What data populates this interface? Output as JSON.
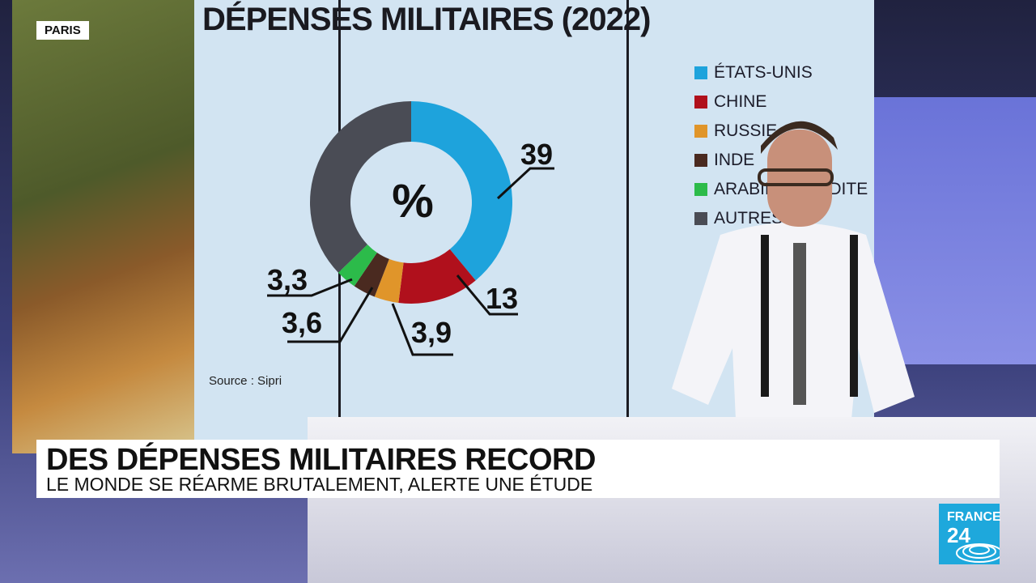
{
  "location_tag": "PARIS",
  "graphic": {
    "title": "DÉPENSES MILITAIRES (2022)",
    "source": "Source : Sipri",
    "center_symbol": "%"
  },
  "chart_data": {
    "type": "pie",
    "title": "DÉPENSES MILITAIRES (2022)",
    "unit": "%",
    "donut": true,
    "categories": [
      "ÉTATS-UNIS",
      "CHINE",
      "RUSSIE",
      "INDE",
      "ARABIE SAOUDITE",
      "AUTRES"
    ],
    "values": [
      39,
      13,
      3.9,
      3.6,
      3.3,
      37.2
    ],
    "data_labels": [
      "39",
      "13",
      "3,9",
      "3,6",
      "3,3",
      ""
    ],
    "colors": [
      "#1ea3dc",
      "#b0101c",
      "#e0952a",
      "#4a2a20",
      "#2cbb4a",
      "#4a4c55"
    ],
    "legend_position": "right"
  },
  "banner": {
    "headline": "DES DÉPENSES MILITAIRES RECORD",
    "subheadline": "LE MONDE SE RÉARME BRUTALEMENT, ALERTE UNE ÉTUDE"
  },
  "logo": {
    "line1": "FRANCE",
    "line2": "24",
    "color": "#1ea8dc"
  }
}
